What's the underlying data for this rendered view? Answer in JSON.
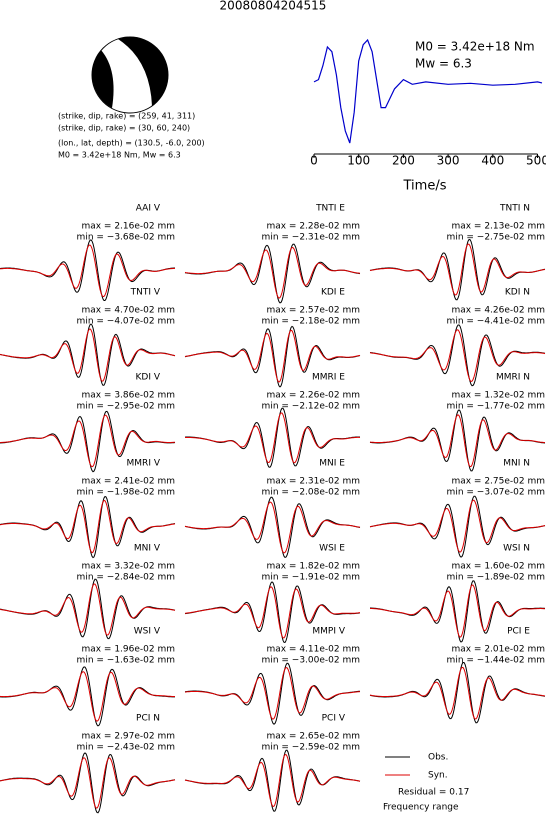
{
  "title": "20080804204515",
  "mechanism": [
    "(strike, dip, rake) = (259, 41, 311)",
    "(strike, dip, rake) = (30, 60, 240)",
    "(lon., lat, depth) = (130.5, -6.0, 200)",
    "M0 = 3.42e+18 Nm, Mw = 6.3"
  ],
  "chart_data": {
    "type": "line",
    "xlabel": "Time/s",
    "annotations": [
      "M0 = 3.42e+18 Nm",
      "Mw = 6.3"
    ],
    "x": [
      0,
      10,
      20,
      30,
      40,
      50,
      60,
      70,
      80,
      90,
      100,
      110,
      120,
      130,
      140,
      150,
      160,
      170,
      180,
      200,
      220,
      250,
      300,
      350,
      400,
      450,
      500,
      510
    ],
    "series": [
      {
        "name": "Source time function",
        "color": "#0000cc",
        "values": [
          0.05,
          0.1,
          0.4,
          0.8,
          0.7,
          0.2,
          -0.5,
          -1.0,
          -1.26,
          -0.6,
          0.5,
          0.85,
          0.95,
          0.7,
          0.1,
          -0.5,
          -0.5,
          -0.3,
          -0.1,
          0.1,
          0.0,
          0.05,
          0.0,
          0.02,
          -0.02,
          0.0,
          0.05,
          0.03
        ]
      }
    ],
    "xlim": [
      0,
      510
    ],
    "xticks": [
      0,
      100,
      200,
      300,
      400,
      500
    ]
  },
  "panels": [
    {
      "name": "AAI V",
      "max": "max = 2.16e-02 mm",
      "min": "min = −3.68e-02 mm"
    },
    {
      "name": "TNTI E",
      "max": "max = 2.28e-02 mm",
      "min": "min = −2.31e-02 mm"
    },
    {
      "name": "TNTI N",
      "max": "max = 2.13e-02 mm",
      "min": "min = −2.75e-02 mm"
    },
    {
      "name": "TNTI V",
      "max": "max = 4.70e-02 mm",
      "min": "min = −4.07e-02 mm"
    },
    {
      "name": "KDI E",
      "max": "max = 2.57e-02 mm",
      "min": "min = −2.18e-02 mm"
    },
    {
      "name": "KDI N",
      "max": "max = 4.26e-02 mm",
      "min": "min = −4.41e-02 mm"
    },
    {
      "name": "KDI V",
      "max": "max = 3.86e-02 mm",
      "min": "min = −2.95e-02 mm"
    },
    {
      "name": "MMRI E",
      "max": "max = 2.26e-02 mm",
      "min": "min = −2.12e-02 mm"
    },
    {
      "name": "MMRI N",
      "max": "max = 1.32e-02 mm",
      "min": "min = −1.77e-02 mm"
    },
    {
      "name": "MMRI V",
      "max": "max = 2.41e-02 mm",
      "min": "min = −1.98e-02 mm"
    },
    {
      "name": "MNI E",
      "max": "max = 2.31e-02 mm",
      "min": "min = −2.08e-02 mm"
    },
    {
      "name": "MNI N",
      "max": "max = 2.75e-02 mm",
      "min": "min = −3.07e-02 mm"
    },
    {
      "name": "MNI V",
      "max": "max = 3.32e-02 mm",
      "min": "min = −2.84e-02 mm"
    },
    {
      "name": "WSI E",
      "max": "max = 1.82e-02 mm",
      "min": "min = −1.91e-02 mm"
    },
    {
      "name": "WSI N",
      "max": "max = 1.60e-02 mm",
      "min": "min = −1.89e-02 mm"
    },
    {
      "name": "WSI V",
      "max": "max = 1.96e-02 mm",
      "min": "min = −1.63e-02 mm"
    },
    {
      "name": "MMPI V",
      "max": "max = 4.11e-02 mm",
      "min": "min = −3.00e-02 mm"
    },
    {
      "name": "PCI E",
      "max": "max = 2.01e-02 mm",
      "min": "min = −1.44e-02 mm"
    },
    {
      "name": "PCI N",
      "max": "max = 2.97e-02 mm",
      "min": "min = −2.43e-02 mm"
    },
    {
      "name": "PCI V",
      "max": "max = 2.65e-02 mm",
      "min": "min = −2.59e-02 mm"
    }
  ],
  "legend": {
    "obs": "Obs.",
    "syn": "Syn.",
    "residual": "Residual = 0.17",
    "frequency": "Frequency range"
  }
}
